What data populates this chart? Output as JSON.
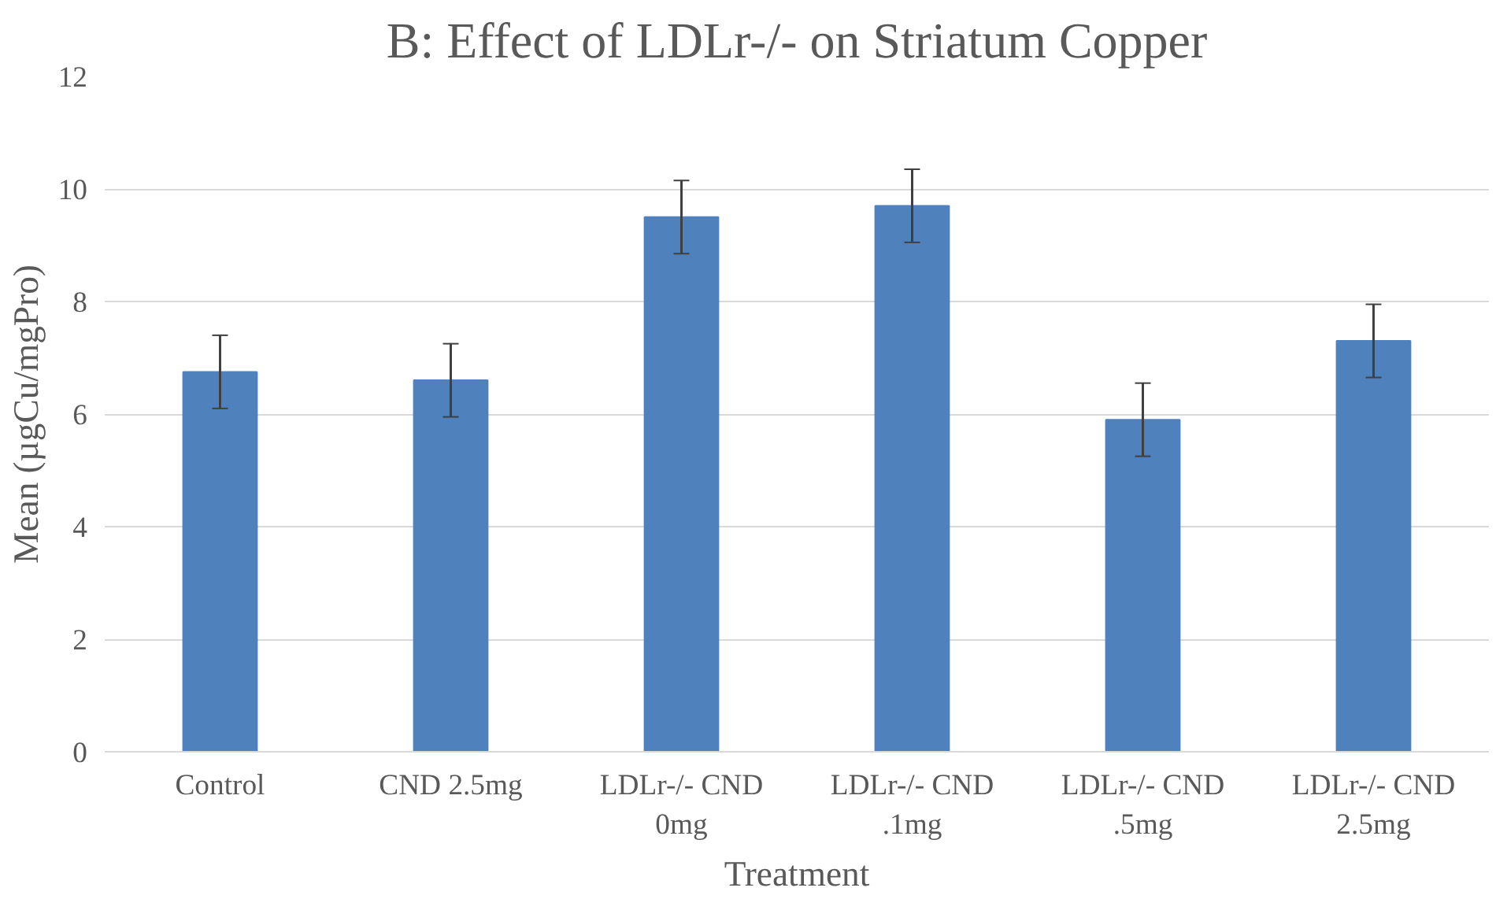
{
  "chart_data": {
    "type": "bar",
    "title": "B: Effect of LDLr-/- on Striatum Copper",
    "xlabel": "Treatment",
    "ylabel": "Mean (µgCu/mgPro)",
    "categories": [
      "Control",
      "CND 2.5mg",
      "LDLr-/- CND 0mg",
      "LDLr-/- CND .1mg",
      "LDLr-/- CND .5mg",
      "LDLr-/- CND 2.5mg"
    ],
    "values": [
      6.75,
      6.6,
      9.5,
      9.7,
      5.9,
      7.3
    ],
    "errors": [
      0.65,
      0.65,
      0.65,
      0.65,
      0.65,
      0.65
    ],
    "color": "#4f81bd",
    "ylim": [
      0,
      12
    ],
    "yticks": [
      0,
      2,
      4,
      6,
      8,
      10,
      12
    ],
    "grid": "y"
  }
}
